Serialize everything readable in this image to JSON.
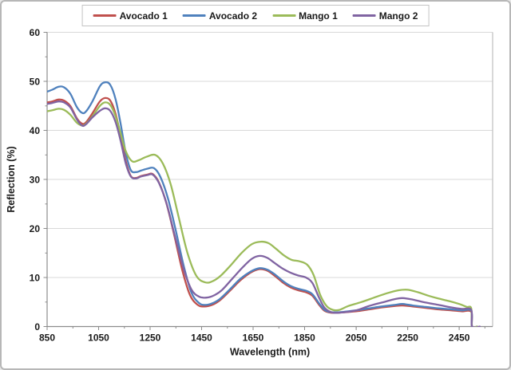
{
  "legend": {
    "items": [
      {
        "label": "Avocado 1",
        "color": "#C0504D"
      },
      {
        "label": "Avocado 2",
        "color": "#4F81BD"
      },
      {
        "label": "Mango 1",
        "color": "#9BBB59"
      },
      {
        "label": "Mango 2",
        "color": "#8064A2"
      }
    ]
  },
  "colors": {
    "grid": "#d9d9d9",
    "axis": "#8c8c8c",
    "plot_right_border": "#bfbfbf",
    "tick_text": "#1a1a1a",
    "frame_border": "#b7b7b7"
  },
  "chart_data": {
    "type": "line",
    "title": "",
    "xlabel": "Wavelength (nm)",
    "ylabel": "Reflection (%)",
    "xlim": [
      850,
      2580
    ],
    "ylim": [
      0,
      60
    ],
    "x_ticks": [
      850,
      1050,
      1250,
      1450,
      1650,
      1850,
      2050,
      2250,
      2450
    ],
    "y_ticks": [
      0,
      10,
      20,
      30,
      40,
      50,
      60
    ],
    "x_minor_step": 100,
    "y_minor_step": 5,
    "grid": "horizontal-only",
    "legend_position": "top-center",
    "series": [
      {
        "name": "Avocado 1",
        "color": "#C0504D",
        "points": [
          [
            850,
            45.7
          ],
          [
            870,
            45.9
          ],
          [
            895,
            46.3
          ],
          [
            915,
            46.1
          ],
          [
            940,
            45.0
          ],
          [
            965,
            42.5
          ],
          [
            985,
            41.4
          ],
          [
            1000,
            41.6
          ],
          [
            1025,
            43.4
          ],
          [
            1055,
            45.9
          ],
          [
            1075,
            46.6
          ],
          [
            1095,
            46.1
          ],
          [
            1115,
            43.5
          ],
          [
            1135,
            39.0
          ],
          [
            1155,
            33.8
          ],
          [
            1175,
            30.7
          ],
          [
            1195,
            30.3
          ],
          [
            1215,
            30.7
          ],
          [
            1240,
            31.0
          ],
          [
            1260,
            31.1
          ],
          [
            1285,
            29.3
          ],
          [
            1315,
            24.8
          ],
          [
            1345,
            18.3
          ],
          [
            1375,
            11.5
          ],
          [
            1405,
            6.4
          ],
          [
            1435,
            4.4
          ],
          [
            1460,
            4.1
          ],
          [
            1490,
            4.4
          ],
          [
            1520,
            5.3
          ],
          [
            1560,
            7.3
          ],
          [
            1600,
            9.4
          ],
          [
            1640,
            11.0
          ],
          [
            1675,
            11.7
          ],
          [
            1705,
            11.4
          ],
          [
            1735,
            10.3
          ],
          [
            1765,
            9.0
          ],
          [
            1795,
            8.0
          ],
          [
            1825,
            7.4
          ],
          [
            1855,
            7.0
          ],
          [
            1880,
            6.3
          ],
          [
            1905,
            4.5
          ],
          [
            1925,
            3.3
          ],
          [
            1945,
            2.9
          ],
          [
            1965,
            2.8
          ],
          [
            2000,
            2.9
          ],
          [
            2050,
            3.1
          ],
          [
            2100,
            3.5
          ],
          [
            2150,
            3.9
          ],
          [
            2200,
            4.2
          ],
          [
            2230,
            4.3
          ],
          [
            2270,
            4.1
          ],
          [
            2320,
            3.8
          ],
          [
            2370,
            3.5
          ],
          [
            2420,
            3.3
          ],
          [
            2460,
            3.1
          ],
          [
            2497,
            3.0
          ],
          [
            2500,
            0
          ],
          [
            2520,
            0
          ]
        ]
      },
      {
        "name": "Avocado 2",
        "color": "#4F81BD",
        "points": [
          [
            850,
            47.9
          ],
          [
            870,
            48.3
          ],
          [
            895,
            48.9
          ],
          [
            915,
            48.8
          ],
          [
            940,
            47.5
          ],
          [
            965,
            44.8
          ],
          [
            985,
            43.6
          ],
          [
            1000,
            43.8
          ],
          [
            1025,
            45.8
          ],
          [
            1055,
            49.0
          ],
          [
            1075,
            49.8
          ],
          [
            1095,
            49.3
          ],
          [
            1115,
            46.5
          ],
          [
            1135,
            41.5
          ],
          [
            1155,
            35.5
          ],
          [
            1175,
            31.9
          ],
          [
            1195,
            31.5
          ],
          [
            1215,
            31.8
          ],
          [
            1240,
            32.2
          ],
          [
            1265,
            32.3
          ],
          [
            1290,
            30.5
          ],
          [
            1320,
            26.0
          ],
          [
            1350,
            19.5
          ],
          [
            1380,
            12.5
          ],
          [
            1410,
            7.0
          ],
          [
            1440,
            4.8
          ],
          [
            1465,
            4.4
          ],
          [
            1490,
            4.7
          ],
          [
            1520,
            5.6
          ],
          [
            1560,
            7.6
          ],
          [
            1600,
            9.7
          ],
          [
            1640,
            11.2
          ],
          [
            1675,
            11.9
          ],
          [
            1705,
            11.6
          ],
          [
            1735,
            10.6
          ],
          [
            1765,
            9.3
          ],
          [
            1795,
            8.3
          ],
          [
            1825,
            7.7
          ],
          [
            1855,
            7.3
          ],
          [
            1880,
            6.6
          ],
          [
            1905,
            4.8
          ],
          [
            1925,
            3.5
          ],
          [
            1945,
            3.0
          ],
          [
            1965,
            2.9
          ],
          [
            2000,
            3.0
          ],
          [
            2050,
            3.3
          ],
          [
            2100,
            3.7
          ],
          [
            2150,
            4.1
          ],
          [
            2200,
            4.4
          ],
          [
            2230,
            4.6
          ],
          [
            2270,
            4.3
          ],
          [
            2320,
            4.0
          ],
          [
            2370,
            3.7
          ],
          [
            2420,
            3.5
          ],
          [
            2460,
            3.3
          ],
          [
            2497,
            3.2
          ],
          [
            2500,
            0
          ],
          [
            2520,
            0
          ]
        ]
      },
      {
        "name": "Mango 1",
        "color": "#9BBB59",
        "points": [
          [
            850,
            43.9
          ],
          [
            870,
            44.1
          ],
          [
            895,
            44.4
          ],
          [
            915,
            44.2
          ],
          [
            940,
            43.2
          ],
          [
            965,
            41.6
          ],
          [
            985,
            41.0
          ],
          [
            1000,
            41.3
          ],
          [
            1025,
            42.8
          ],
          [
            1055,
            45.0
          ],
          [
            1075,
            45.7
          ],
          [
            1095,
            45.2
          ],
          [
            1115,
            43.0
          ],
          [
            1135,
            39.5
          ],
          [
            1155,
            35.8
          ],
          [
            1180,
            33.7
          ],
          [
            1205,
            33.9
          ],
          [
            1235,
            34.6
          ],
          [
            1270,
            35.0
          ],
          [
            1300,
            33.2
          ],
          [
            1330,
            29.0
          ],
          [
            1360,
            22.5
          ],
          [
            1395,
            15.0
          ],
          [
            1430,
            10.3
          ],
          [
            1465,
            9.0
          ],
          [
            1495,
            9.3
          ],
          [
            1525,
            10.4
          ],
          [
            1565,
            12.6
          ],
          [
            1605,
            15.0
          ],
          [
            1645,
            16.8
          ],
          [
            1680,
            17.3
          ],
          [
            1710,
            17.0
          ],
          [
            1740,
            15.8
          ],
          [
            1770,
            14.5
          ],
          [
            1800,
            13.6
          ],
          [
            1830,
            13.3
          ],
          [
            1860,
            12.6
          ],
          [
            1885,
            10.5
          ],
          [
            1910,
            6.5
          ],
          [
            1935,
            4.2
          ],
          [
            1960,
            3.4
          ],
          [
            1985,
            3.4
          ],
          [
            2020,
            4.2
          ],
          [
            2070,
            5.0
          ],
          [
            2120,
            5.9
          ],
          [
            2170,
            6.8
          ],
          [
            2215,
            7.4
          ],
          [
            2250,
            7.5
          ],
          [
            2290,
            7.0
          ],
          [
            2330,
            6.3
          ],
          [
            2370,
            5.7
          ],
          [
            2410,
            5.2
          ],
          [
            2450,
            4.6
          ],
          [
            2480,
            4.0
          ],
          [
            2497,
            3.7
          ],
          [
            2500,
            0
          ],
          [
            2520,
            0
          ]
        ]
      },
      {
        "name": "Mango 2",
        "color": "#8064A2",
        "points": [
          [
            850,
            45.4
          ],
          [
            870,
            45.6
          ],
          [
            895,
            45.9
          ],
          [
            915,
            45.7
          ],
          [
            940,
            44.7
          ],
          [
            965,
            42.3
          ],
          [
            985,
            41.0
          ],
          [
            1000,
            41.2
          ],
          [
            1025,
            42.6
          ],
          [
            1055,
            44.0
          ],
          [
            1075,
            44.5
          ],
          [
            1095,
            44.0
          ],
          [
            1115,
            41.8
          ],
          [
            1135,
            38.0
          ],
          [
            1155,
            33.3
          ],
          [
            1175,
            30.6
          ],
          [
            1195,
            30.2
          ],
          [
            1215,
            30.6
          ],
          [
            1240,
            30.9
          ],
          [
            1260,
            31.0
          ],
          [
            1285,
            29.2
          ],
          [
            1315,
            24.9
          ],
          [
            1345,
            18.7
          ],
          [
            1380,
            11.8
          ],
          [
            1410,
            7.6
          ],
          [
            1440,
            6.1
          ],
          [
            1470,
            5.9
          ],
          [
            1500,
            6.4
          ],
          [
            1530,
            7.5
          ],
          [
            1570,
            9.8
          ],
          [
            1610,
            12.1
          ],
          [
            1645,
            13.8
          ],
          [
            1675,
            14.4
          ],
          [
            1705,
            14.0
          ],
          [
            1735,
            12.9
          ],
          [
            1765,
            11.8
          ],
          [
            1795,
            11.0
          ],
          [
            1825,
            10.4
          ],
          [
            1855,
            10.0
          ],
          [
            1880,
            8.9
          ],
          [
            1905,
            6.0
          ],
          [
            1925,
            4.0
          ],
          [
            1945,
            3.1
          ],
          [
            1965,
            2.8
          ],
          [
            2000,
            2.9
          ],
          [
            2050,
            3.3
          ],
          [
            2100,
            4.2
          ],
          [
            2150,
            4.9
          ],
          [
            2200,
            5.6
          ],
          [
            2230,
            5.8
          ],
          [
            2270,
            5.5
          ],
          [
            2320,
            4.9
          ],
          [
            2370,
            4.4
          ],
          [
            2420,
            3.9
          ],
          [
            2460,
            3.6
          ],
          [
            2497,
            3.4
          ],
          [
            2500,
            0
          ],
          [
            2530,
            0
          ]
        ]
      }
    ]
  }
}
